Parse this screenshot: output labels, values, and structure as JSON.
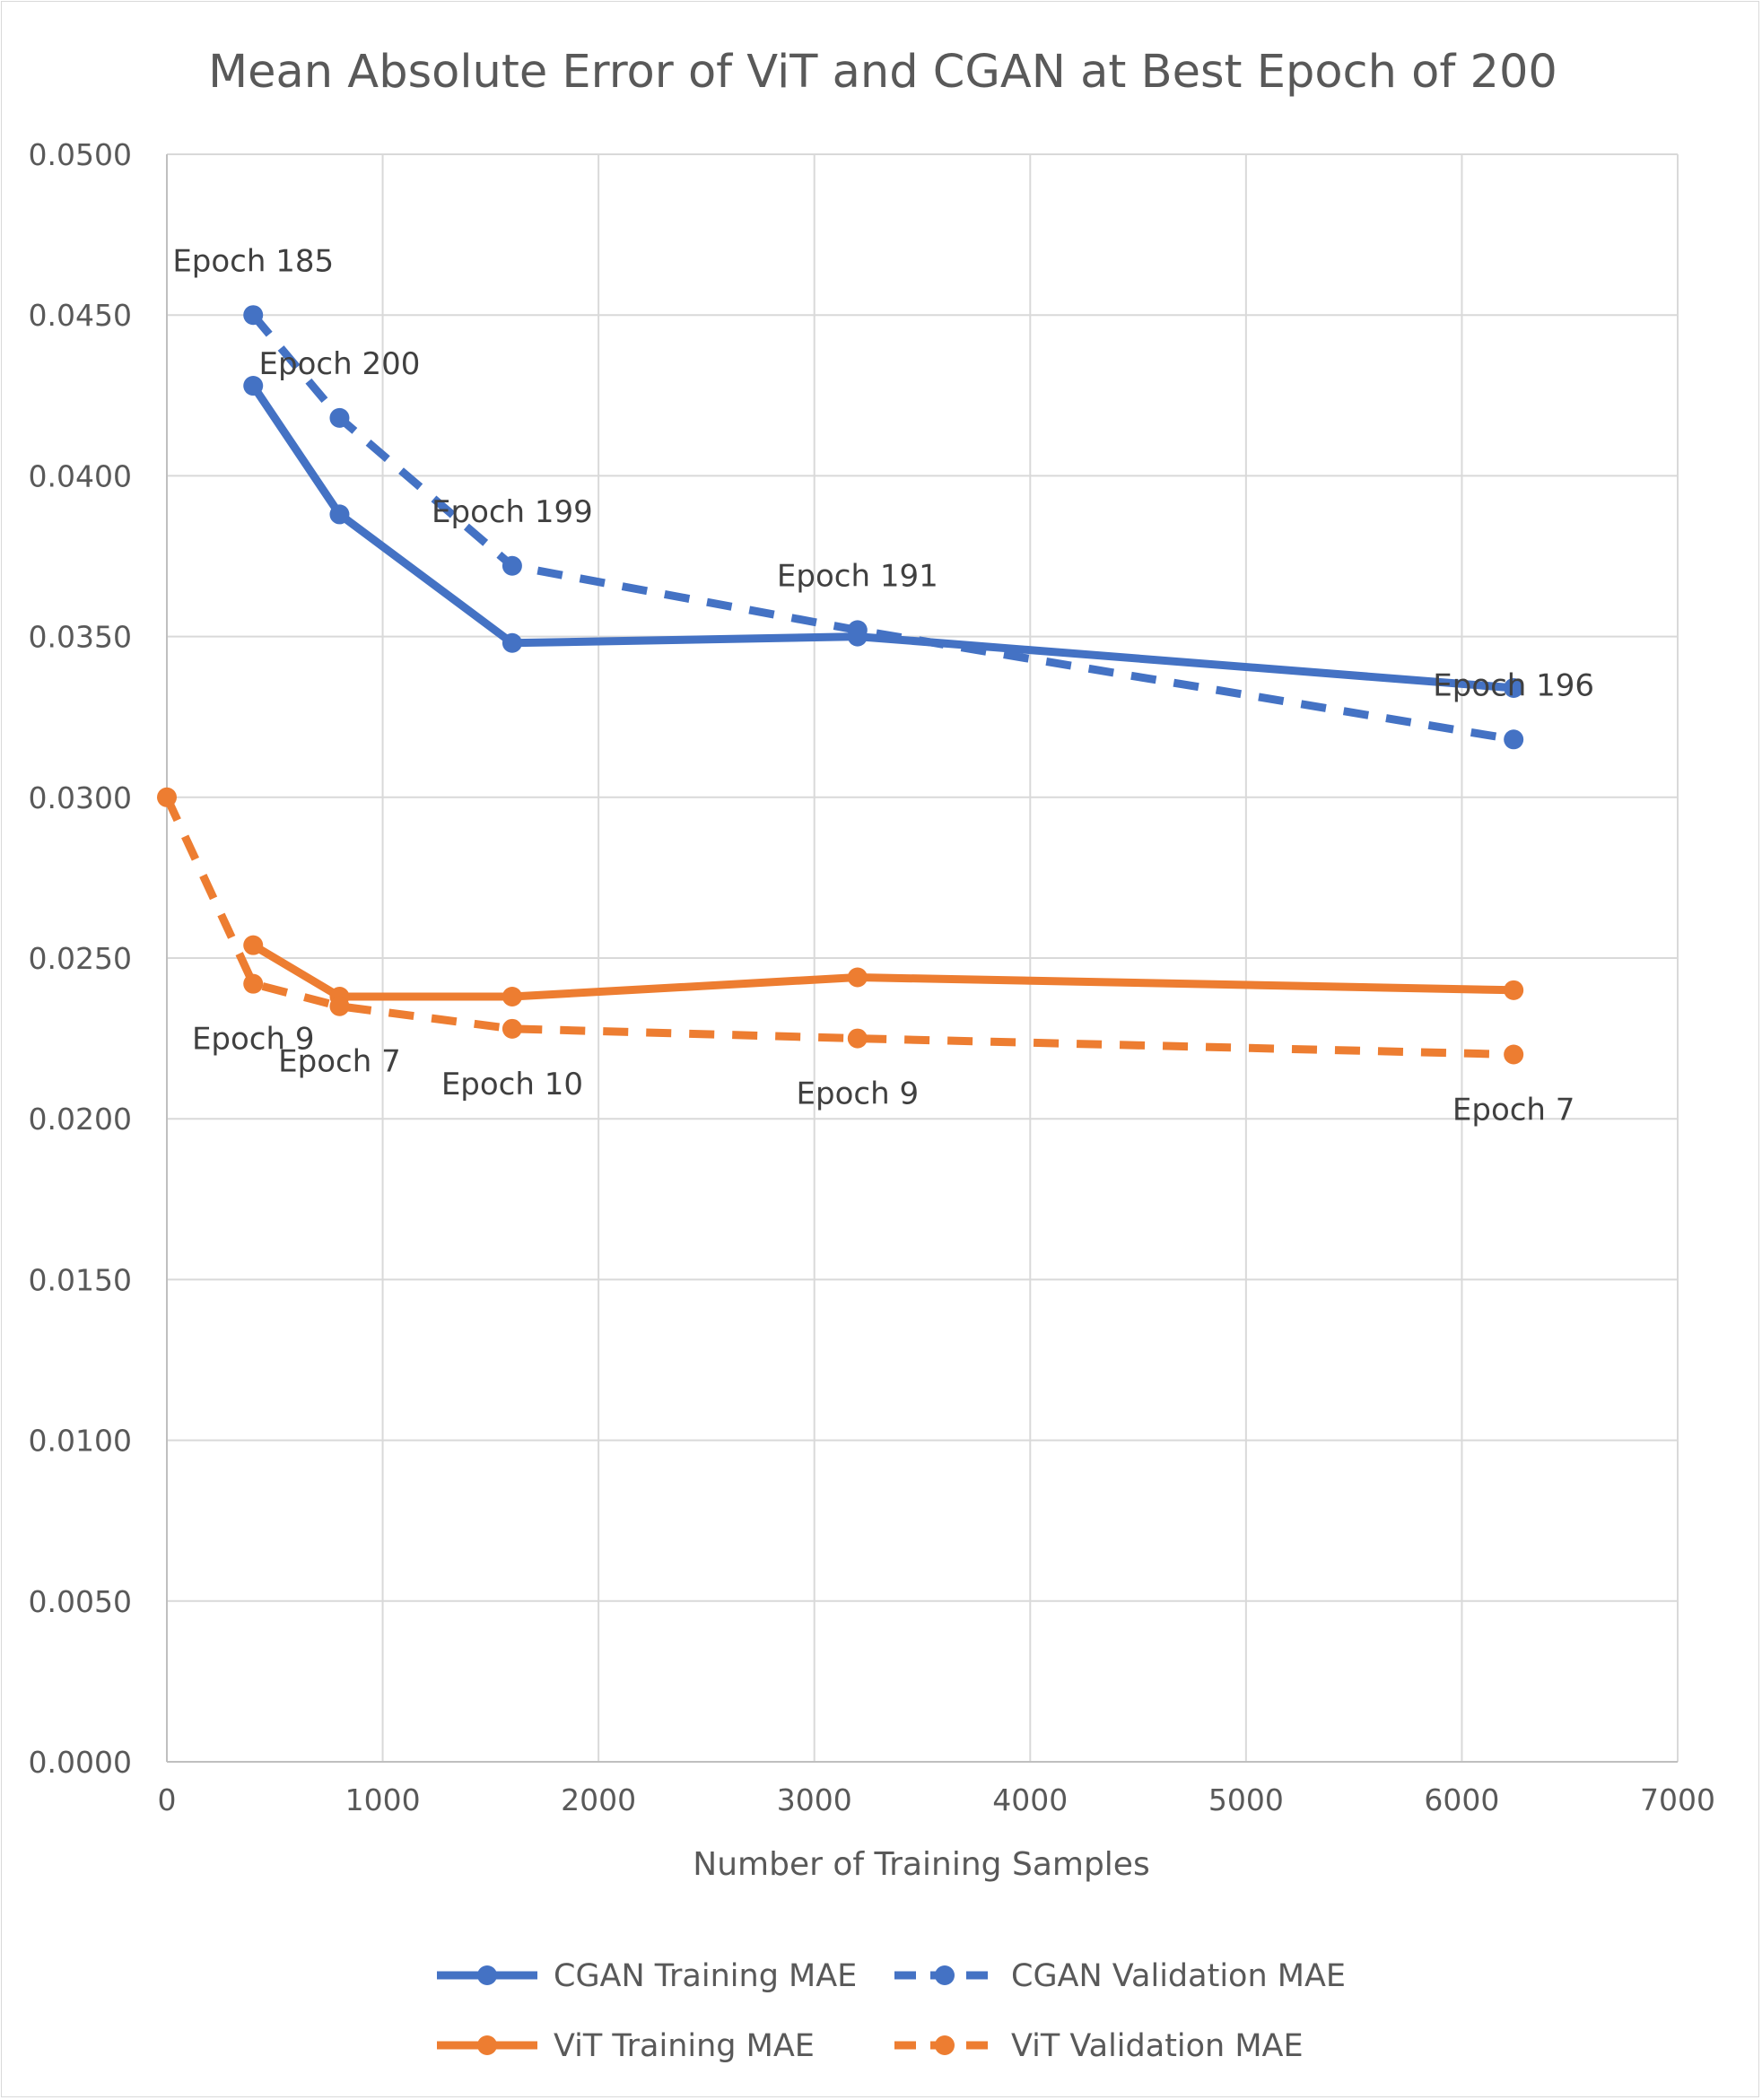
{
  "chart_data": {
    "type": "line",
    "title": "Mean Absolute Error of ViT and CGAN at Best Epoch of 200",
    "xlabel": "Number of Training Samples",
    "ylabel": "",
    "xlim": [
      0,
      7000
    ],
    "ylim": [
      0,
      0.05
    ],
    "x_ticks": [
      0,
      1000,
      2000,
      3000,
      4000,
      5000,
      6000,
      7000
    ],
    "x_tick_labels": [
      "0",
      "1000",
      "2000",
      "3000",
      "4000",
      "5000",
      "6000",
      "7000"
    ],
    "y_ticks": [
      0,
      0.005,
      0.01,
      0.015,
      0.02,
      0.025,
      0.03,
      0.035,
      0.04,
      0.045,
      0.05
    ],
    "y_tick_labels": [
      "0.0000",
      "0.0050",
      "0.0100",
      "0.0150",
      "0.0200",
      "0.0250",
      "0.0300",
      "0.0350",
      "0.0400",
      "0.0450",
      "0.0500"
    ],
    "grid": true,
    "legend_position": "bottom",
    "series": [
      {
        "name": "CGAN Training MAE",
        "color": "#4472C4",
        "style": "solid",
        "x": [
          400,
          800,
          1600,
          3200,
          6240
        ],
        "y": [
          0.0428,
          0.0388,
          0.0348,
          0.035,
          0.0334
        ]
      },
      {
        "name": "CGAN Validation MAE",
        "color": "#4472C4",
        "style": "dashed",
        "x": [
          400,
          800,
          1600,
          3200,
          6240
        ],
        "y": [
          0.045,
          0.0418,
          0.0372,
          0.0352,
          0.0318
        ]
      },
      {
        "name": "ViT Training MAE",
        "color": "#ED7D31",
        "style": "solid",
        "x": [
          400,
          800,
          1600,
          3200,
          6240
        ],
        "y": [
          0.0254,
          0.0238,
          0.0238,
          0.0244,
          0.024
        ]
      },
      {
        "name": "ViT Validation MAE",
        "color": "#ED7D31",
        "style": "dashed",
        "x": [
          0,
          400,
          800,
          1600,
          3200,
          6240
        ],
        "y": [
          0.03,
          0.0242,
          0.0235,
          0.0228,
          0.0225,
          0.022
        ]
      }
    ],
    "annotations": [
      {
        "text": "Epoch 185",
        "x": 400,
        "y": 0.0467
      },
      {
        "text": "Epoch 200",
        "x": 800,
        "y": 0.0435
      },
      {
        "text": "Epoch 199",
        "x": 1600,
        "y": 0.0389
      },
      {
        "text": "Epoch 191",
        "x": 3200,
        "y": 0.0369
      },
      {
        "text": "Epoch 196",
        "x": 6240,
        "y": 0.0335
      },
      {
        "text": "Epoch 9",
        "x": 400,
        "y": 0.0225
      },
      {
        "text": "Epoch 7",
        "x": 800,
        "y": 0.0218
      },
      {
        "text": "Epoch 10",
        "x": 1600,
        "y": 0.0211
      },
      {
        "text": "Epoch 9",
        "x": 3200,
        "y": 0.0208
      },
      {
        "text": "Epoch 7",
        "x": 6240,
        "y": 0.0203
      }
    ]
  }
}
